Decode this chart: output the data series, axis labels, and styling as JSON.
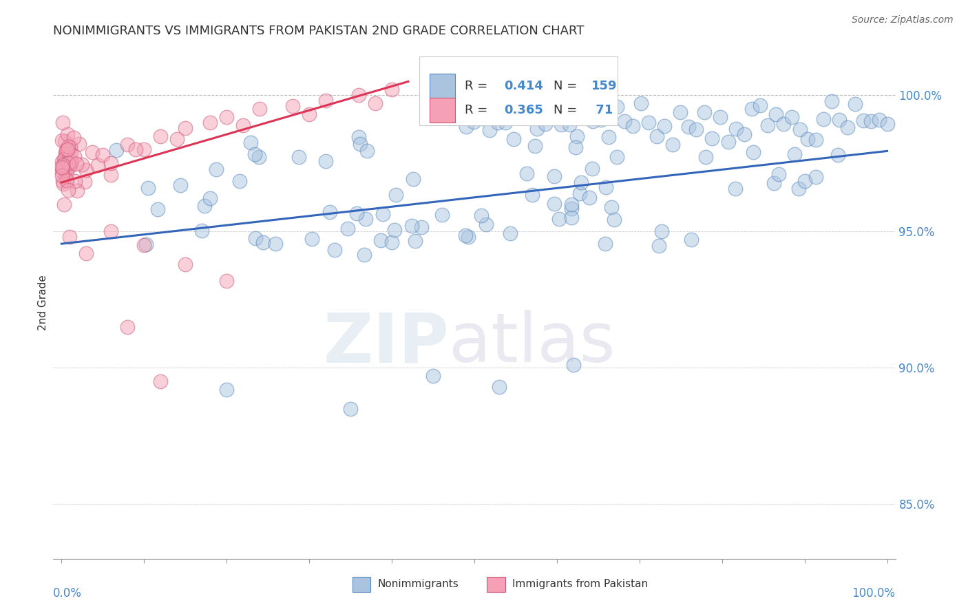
{
  "title": "NONIMMIGRANTS VS IMMIGRANTS FROM PAKISTAN 2ND GRADE CORRELATION CHART",
  "source": "Source: ZipAtlas.com",
  "ylabel": "2nd Grade",
  "y_ticks": [
    85.0,
    90.0,
    95.0,
    100.0
  ],
  "y_tick_labels": [
    "85.0%",
    "90.0%",
    "95.0%",
    "100.0%"
  ],
  "legend_R_blue": "0.414",
  "legend_N_blue": "159",
  "legend_R_pink": "0.365",
  "legend_N_pink": " 71",
  "blue_color": "#aac4e0",
  "blue_edge_color": "#5588bb",
  "pink_color": "#f5a0b5",
  "pink_edge_color": "#cc5577",
  "blue_line_color": "#3366bb",
  "pink_line_color": "#dd3355",
  "tick_color": "#4488cc",
  "title_color": "#333333",
  "source_color": "#666666",
  "background_color": "#ffffff",
  "dashed_line_color": "#aaaaaa",
  "grid_color": "#dddddd",
  "blue_line_x0": 0.0,
  "blue_line_x1": 1.0,
  "blue_line_y0": 94.55,
  "blue_line_y1": 97.95,
  "pink_line_x0": 0.0,
  "pink_line_x1": 0.42,
  "pink_line_y0": 96.8,
  "pink_line_y1": 100.5,
  "ylim_low": 83.0,
  "ylim_high": 101.8,
  "xlim_low": -0.01,
  "xlim_high": 1.01
}
